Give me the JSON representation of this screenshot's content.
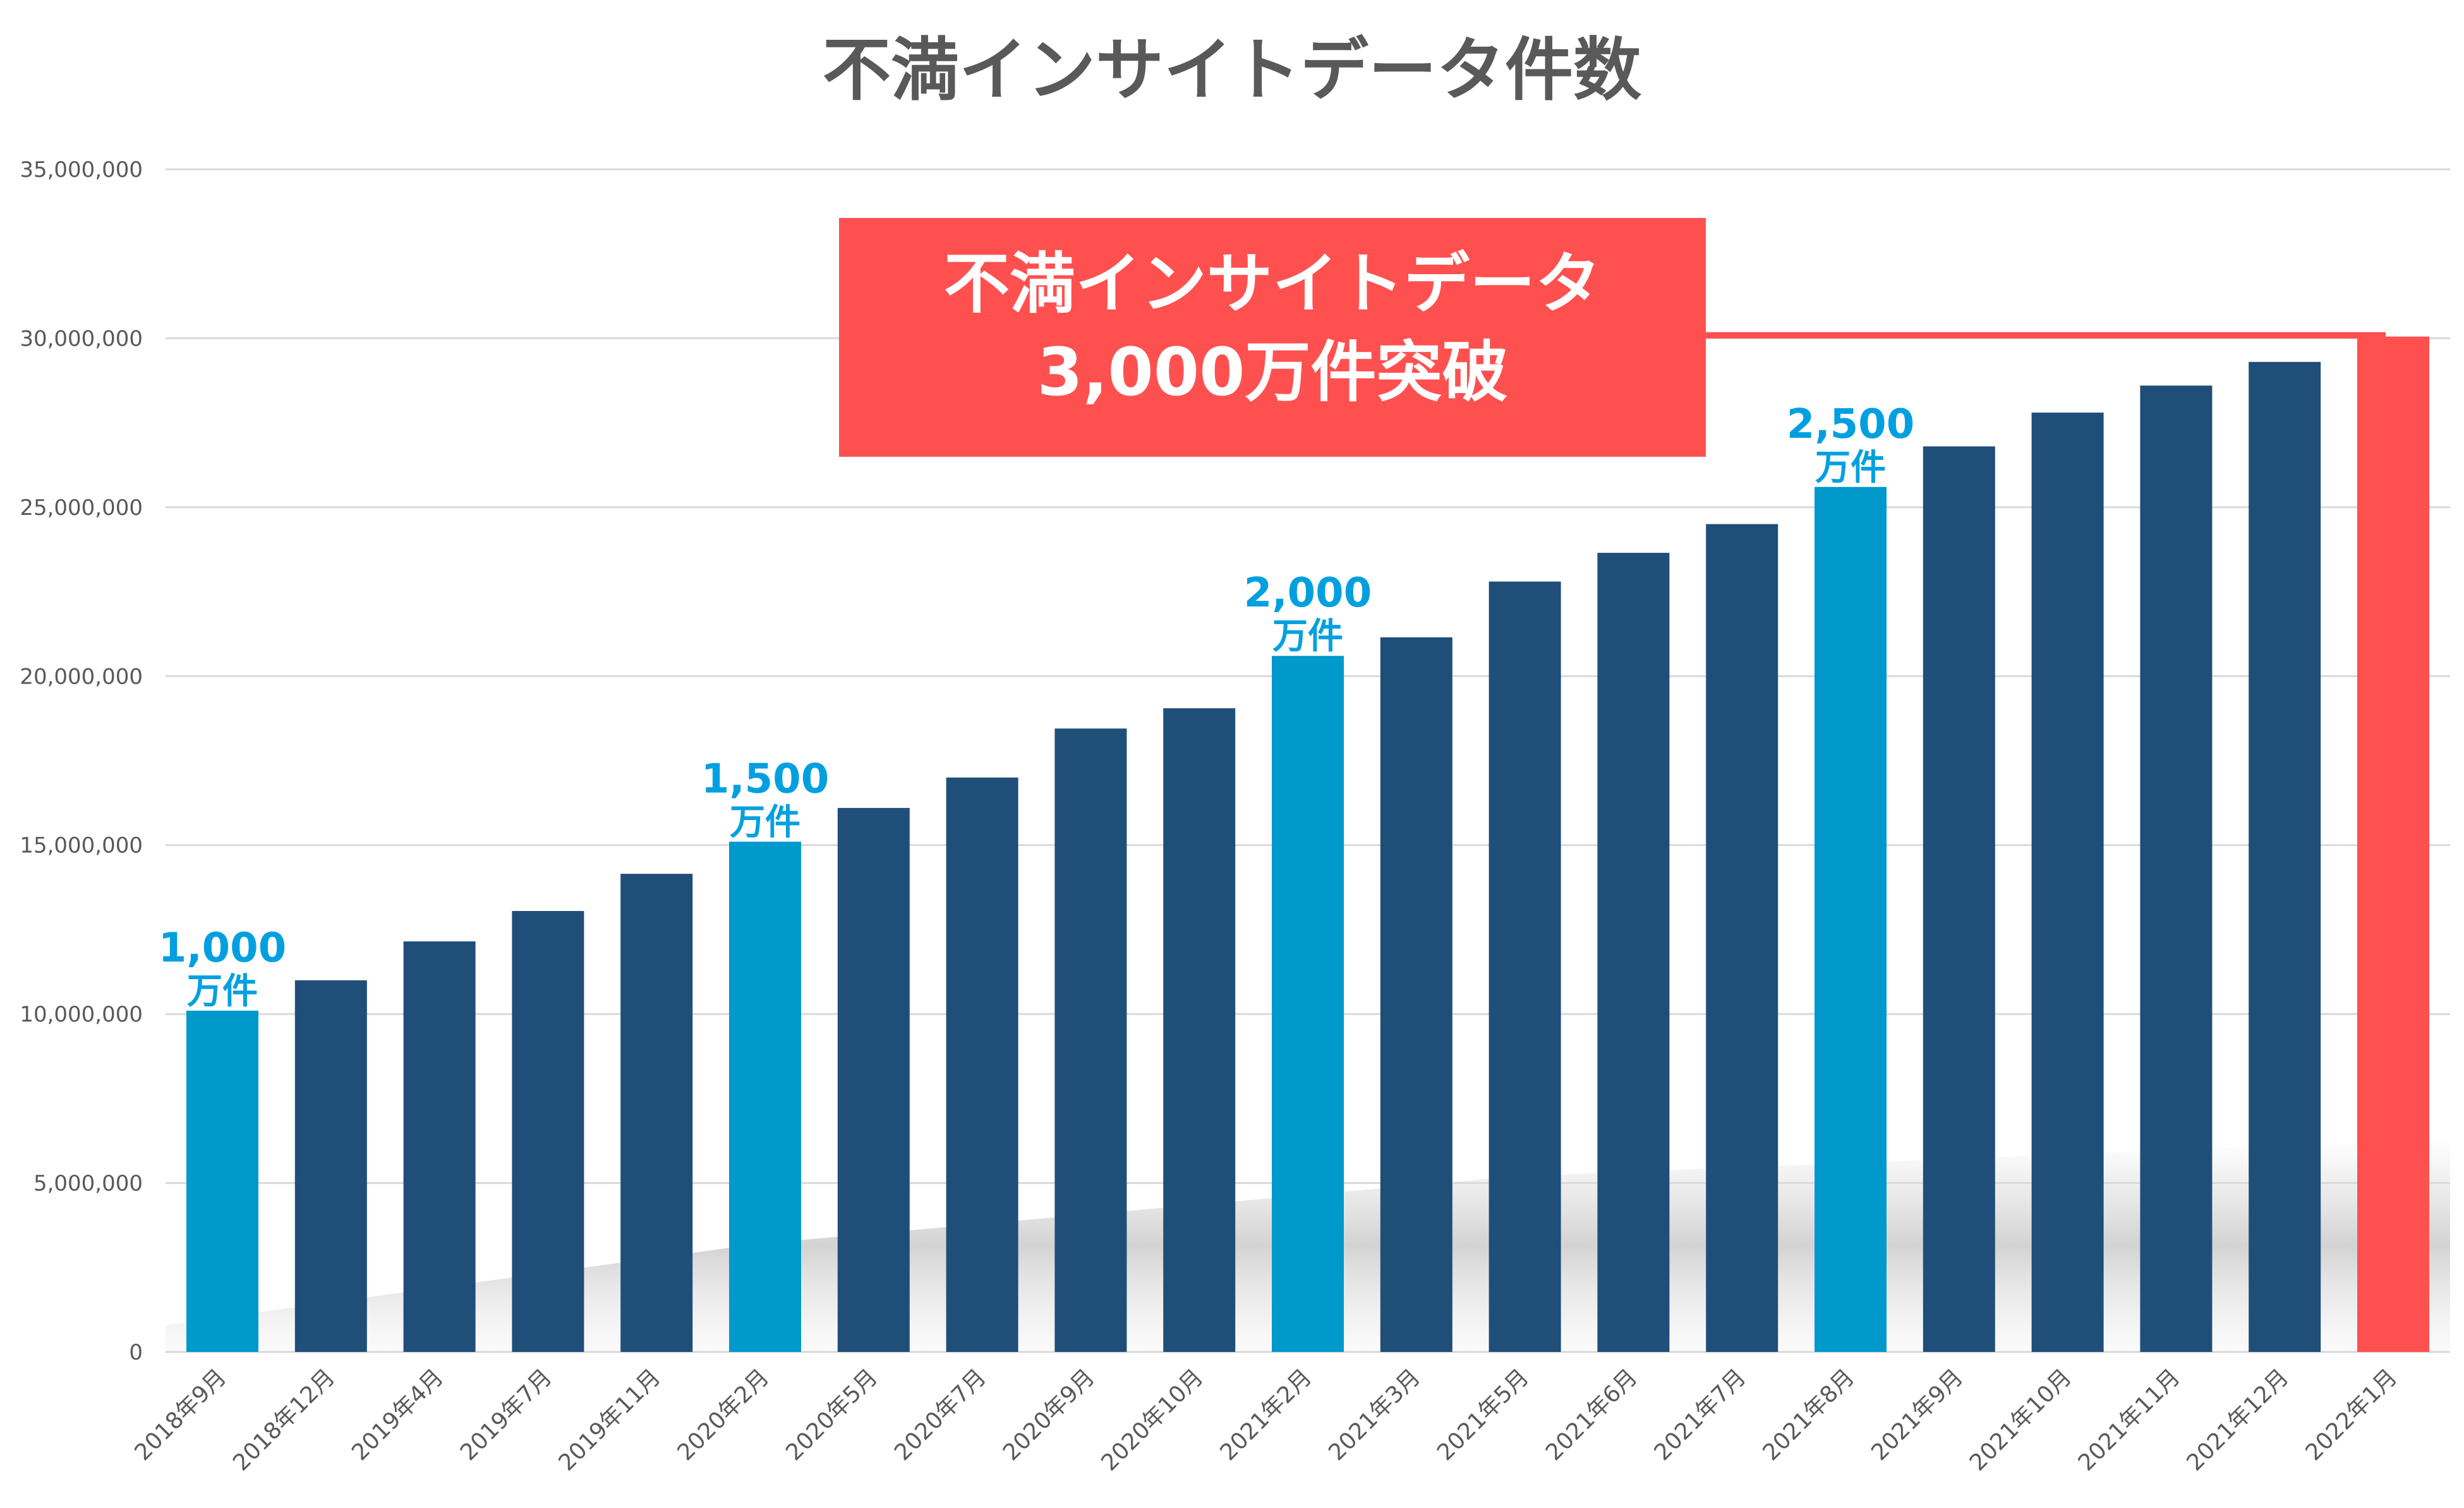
{
  "chart_data": {
    "type": "bar",
    "title": "不満インサイトデータ件数",
    "xlabel": "",
    "ylabel": "",
    "ylim": [
      0,
      35000000
    ],
    "y_ticks": [
      {
        "value": 0,
        "label": "0"
      },
      {
        "value": 5000000,
        "label": "5,000,000"
      },
      {
        "value": 10000000,
        "label": "10,000,000"
      },
      {
        "value": 15000000,
        "label": "15,000,000"
      },
      {
        "value": 20000000,
        "label": "20,000,000"
      },
      {
        "value": 25000000,
        "label": "25,000,000"
      },
      {
        "value": 30000000,
        "label": "30,000,000"
      },
      {
        "value": 35000000,
        "label": "35,000,000"
      }
    ],
    "grid": true,
    "categories": [
      "2018年9月",
      "2018年12月",
      "2019年4月",
      "2019年7月",
      "2019年11月",
      "2020年2月",
      "2020年5月",
      "2020年7月",
      "2020年9月",
      "2020年10月",
      "2021年2月",
      "2021年3月",
      "2021年5月",
      "2021年6月",
      "2021年7月",
      "2021年8月",
      "2021年9月",
      "2021年10月",
      "2021年11月",
      "2021年12月",
      "2022年1月"
    ],
    "values": [
      10100000,
      11000000,
      12150000,
      13050000,
      14150000,
      15100000,
      16100000,
      17000000,
      18450000,
      19050000,
      20600000,
      21150000,
      22800000,
      23650000,
      24500000,
      25600000,
      26800000,
      27800000,
      28600000,
      29300000,
      30050000
    ],
    "bar_kinds": [
      "milestone",
      "normal",
      "normal",
      "normal",
      "normal",
      "milestone",
      "normal",
      "normal",
      "normal",
      "normal",
      "milestone",
      "normal",
      "normal",
      "normal",
      "normal",
      "milestone",
      "normal",
      "normal",
      "normal",
      "normal",
      "highlight"
    ],
    "milestone_labels": [
      {
        "index": 0,
        "number": "1,000",
        "unit": "万件"
      },
      {
        "index": 5,
        "number": "1,500",
        "unit": "万件"
      },
      {
        "index": 10,
        "number": "2,000",
        "unit": "万件"
      },
      {
        "index": 15,
        "number": "2,500",
        "unit": "万件"
      }
    ],
    "callout": {
      "line1": "不満インサイトデータ",
      "line2": "3,000万件突破",
      "points_to_index": 20
    }
  },
  "colors": {
    "normal_bar": "#1f4e79",
    "milestone_bar": "#0099cc",
    "highlight_bar": "#ff5050",
    "milestone_text": "#00a0e0",
    "title": "#595959",
    "tick": "#595959",
    "grid": "#d9d9d9",
    "callout_bg": "#ff5050",
    "callout_text": "#ffffff"
  }
}
